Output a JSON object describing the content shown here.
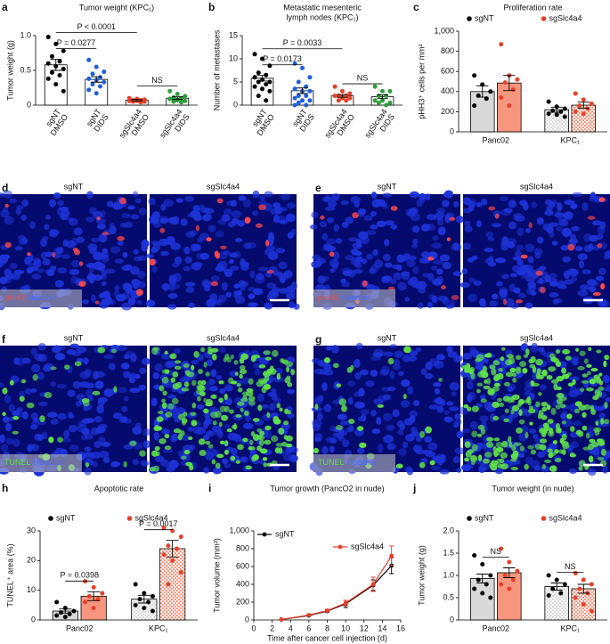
{
  "chart_data": [
    {
      "panel": "a",
      "type": "bar",
      "title": "Tumor weight (KPC₁)",
      "ylabel": "Tumor weight (g)",
      "categories": [
        [
          "sgNT",
          "DMSO"
        ],
        [
          "sgNT",
          "DIDS"
        ],
        [
          "sgSlc4a4",
          "DMSO"
        ],
        [
          "sgSlc4a4",
          "DIDS"
        ]
      ],
      "values": [
        0.58,
        0.37,
        0.07,
        0.1
      ],
      "errors": [
        0.08,
        0.04,
        0.01,
        0.02
      ],
      "points": [
        [
          0.98,
          0.88,
          0.78,
          0.7,
          0.63,
          0.6,
          0.56,
          0.52,
          0.47,
          0.43,
          0.38,
          0.3,
          0.2
        ],
        [
          0.65,
          0.55,
          0.48,
          0.45,
          0.4,
          0.38,
          0.36,
          0.33,
          0.3,
          0.27,
          0.22,
          0.17
        ],
        [
          0.1,
          0.09,
          0.08,
          0.07,
          0.07,
          0.06,
          0.06,
          0.05,
          0.05,
          0.04
        ],
        [
          0.2,
          0.16,
          0.13,
          0.11,
          0.1,
          0.09,
          0.07,
          0.06,
          0.05,
          0.04
        ]
      ],
      "colors": [
        "#000000",
        "#1f5fe0",
        "#e8402a",
        "#2e9e3a"
      ],
      "ylim": [
        0,
        1
      ],
      "yticks": [
        0,
        0.5,
        {
          "value": 1,
          "label": "1.0"
        }
      ],
      "comparisons": [
        {
          "from": 0,
          "to": 1,
          "label": "P = 0.0277"
        },
        {
          "from": 0,
          "to": 2,
          "label": "P < 0.0001"
        },
        {
          "from": 2,
          "to": 3,
          "label": "NS"
        }
      ]
    },
    {
      "panel": "b",
      "type": "bar",
      "title": [
        "Metastatic mesenteric",
        "lymph nodes (KPC₁)"
      ],
      "ylabel": "Number of metastases",
      "categories": [
        [
          "sgNT",
          "DMSO"
        ],
        [
          "sgNT",
          "DIDS"
        ],
        [
          "sgSlc4a4",
          "DMSO"
        ],
        [
          "sgSlc4a4",
          "DIDS"
        ]
      ],
      "values": [
        5.8,
        3.1,
        2.0,
        1.8
      ],
      "errors": [
        0.6,
        0.6,
        0.3,
        0.4
      ],
      "points": [
        [
          11,
          10,
          8.5,
          7,
          6.5,
          6,
          5.5,
          5,
          5,
          4.5,
          4,
          3.5,
          3,
          2,
          1
        ],
        [
          9,
          8,
          6,
          5,
          4,
          3.5,
          3,
          3,
          2,
          2,
          1.5,
          1,
          1,
          0.5,
          0,
          0
        ],
        [
          4,
          3,
          2.5,
          2,
          2,
          2,
          1.5,
          1.5,
          1,
          1
        ],
        [
          4,
          3,
          3,
          2,
          2,
          1,
          1,
          0.5,
          0.5,
          0
        ]
      ],
      "colors": [
        "#000000",
        "#1f5fe0",
        "#e8402a",
        "#2e9e3a"
      ],
      "ylim": [
        0,
        15
      ],
      "yticks": [
        0,
        5,
        10,
        15
      ],
      "comparisons": [
        {
          "from": 0,
          "to": 1,
          "label": "P = 0.0173"
        },
        {
          "from": 0,
          "to": 2,
          "label": "P = 0.0033"
        },
        {
          "from": 2,
          "to": 3,
          "label": "NS"
        }
      ]
    },
    {
      "panel": "c",
      "type": "bar",
      "title": "Proliferation rate",
      "ylabel": "pHH3⁺ cells per mm²",
      "categories": [
        "Panc02",
        "KPC₁"
      ],
      "series": [
        {
          "name": "sgNT",
          "color": "#d9d9d9",
          "point_color": "#000000",
          "values": [
            400,
            220
          ],
          "errors": [
            55,
            25
          ],
          "points": [
            [
              560,
              470,
              400,
              360,
              330,
              260
            ],
            [
              300,
              250,
              230,
              210,
              200,
              180,
              170,
              150
            ]
          ]
        },
        {
          "name": "sgSlc4a4",
          "color": "#f7967f",
          "point_color": "#e8402a",
          "values": [
            485,
            265
          ],
          "errors": [
            75,
            30
          ],
          "points": [
            [
              870,
              560,
              520,
              490,
              420,
              340,
              260
            ],
            [
              380,
              320,
              280,
              260,
              230,
              200,
              180
            ]
          ]
        }
      ],
      "ylim": [
        0,
        1000
      ],
      "yticks": [
        0,
        200,
        400,
        600,
        800,
        {
          "value": 1000,
          "label": "1,000"
        }
      ],
      "comparisons": []
    },
    {
      "panel": "h",
      "type": "bar",
      "title": "Apoptotic rate",
      "ylabel": "TUNEL⁺ area (%)",
      "categories": [
        "Panc02",
        "KPC₁"
      ],
      "series": [
        {
          "name": "sgNT",
          "color": "#d9d9d9",
          "point_color": "#000000",
          "values": [
            3,
            7
          ],
          "errors": [
            0.7,
            1.3
          ],
          "points": [
            [
              6,
              4,
              3,
              2.5,
              2,
              1.5,
              1
            ],
            [
              12,
              9,
              8,
              7,
              6,
              5,
              4,
              3
            ]
          ]
        },
        {
          "name": "sgSlc4a4",
          "color": "#f7967f",
          "point_color": "#e8402a",
          "values": [
            8,
            24
          ],
          "errors": [
            1.5,
            2.8
          ],
          "points": [
            [
              13,
              11,
              9,
              8,
              7,
              6,
              4
            ],
            [
              31,
              30,
              28,
              25,
              24,
              22,
              20,
              16,
              12
            ]
          ]
        }
      ],
      "ylim": [
        0,
        30
      ],
      "yticks": [
        0,
        10,
        20,
        30
      ],
      "comparisons": [
        {
          "category": 0,
          "label": "P = 0.0398"
        },
        {
          "category": 1,
          "label": "P = 0.0017"
        }
      ]
    },
    {
      "panel": "i",
      "type": "line",
      "title": "Tumor growth (PancO2 in nude)",
      "ylabel": "Tumor volume (mm³)",
      "xlabel": "Time after cancer cell injection (d)",
      "x": [
        3,
        6,
        8,
        10,
        13,
        15
      ],
      "series": [
        {
          "name": "sgNT",
          "color": "#000000",
          "values": [
            5,
            50,
            100,
            180,
            390,
            610
          ],
          "errors": [
            0,
            5,
            15,
            40,
            60,
            90
          ]
        },
        {
          "name": "sgSlc4a4",
          "color": "#e8402a",
          "values": [
            5,
            55,
            105,
            190,
            400,
            720
          ],
          "errors": [
            0,
            5,
            15,
            30,
            80,
            110
          ]
        }
      ],
      "xlim": [
        0,
        16
      ],
      "xticks": [
        0,
        2,
        4,
        6,
        8,
        10,
        12,
        14,
        16
      ],
      "ylim": [
        0,
        1000
      ],
      "yticks": [
        0,
        200,
        400,
        600,
        800,
        {
          "value": 1000,
          "label": "1,000"
        }
      ]
    },
    {
      "panel": "j",
      "type": "bar",
      "title": "Tumor weight (in nude)",
      "ylabel": "Tumor weight (g)",
      "categories": [
        "Panc02",
        "KPC₁"
      ],
      "series": [
        {
          "name": "sgNT",
          "color": "#d9d9d9",
          "point_color": "#000000",
          "values": [
            0.93,
            0.75
          ],
          "errors": [
            0.1,
            0.08
          ],
          "points": [
            [
              1.45,
              1.25,
              1.0,
              0.9,
              0.8,
              0.7,
              0.6,
              0.5
            ],
            [
              1.0,
              0.9,
              0.8,
              0.7,
              0.6,
              0.55
            ]
          ]
        },
        {
          "name": "sgSlc4a4",
          "color": "#f7967f",
          "point_color": "#e8402a",
          "values": [
            1.06,
            0.7
          ],
          "errors": [
            0.11,
            0.1
          ],
          "points": [
            [
              1.6,
              1.3,
              1.1,
              1.0,
              0.9,
              0.8,
              0.7
            ],
            [
              1.05,
              0.9,
              0.8,
              0.7,
              0.6,
              0.5,
              0.35,
              0.2
            ]
          ]
        }
      ],
      "ylim": [
        0,
        2
      ],
      "yticks": [
        0,
        0.5,
        {
          "value": 1,
          "label": "1.0"
        },
        1.5,
        {
          "value": 2,
          "label": "2.0"
        }
      ],
      "comparisons": [
        {
          "category": 0,
          "label": "NS"
        },
        {
          "category": 1,
          "label": "NS"
        }
      ]
    }
  ],
  "micrographs": [
    {
      "panel": "d",
      "images": [
        "sgNT",
        "sgSlc4a4"
      ],
      "stain": [
        {
          "text": "pHH3",
          "color": "#ff4a4a"
        },
        {
          "text": "Hoechst",
          "color": "#4a6bff"
        }
      ]
    },
    {
      "panel": "e",
      "images": [
        "sgNT",
        "sgSlc4a4"
      ],
      "stain": [
        {
          "text": "pHH3",
          "color": "#ff4a4a"
        },
        {
          "text": "Hoechst",
          "color": "#4a6bff"
        }
      ]
    },
    {
      "panel": "f",
      "images": [
        "sgNT",
        "sgSlc4a4"
      ],
      "stain": [
        {
          "text": "TUNEL",
          "color": "#5fe04a"
        },
        {
          "text": "Hoechst",
          "color": "#4a6bff"
        }
      ]
    },
    {
      "panel": "g",
      "images": [
        "sgNT",
        "sgSlc4a4"
      ],
      "stain": [
        {
          "text": "TUNEL",
          "color": "#5fe04a"
        },
        {
          "text": "Hoechst",
          "color": "#4a6bff"
        }
      ]
    }
  ]
}
